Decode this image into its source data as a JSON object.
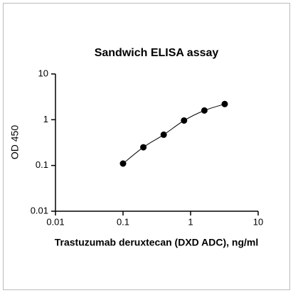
{
  "chart_data": {
    "type": "scatter",
    "title": "Sandwich ELISA assay",
    "x_label": "Trastuzumab deruxtecan (DXD ADC), ng/ml",
    "y_label": "OD 450",
    "x_log": true,
    "y_log": true,
    "xlim": [
      0.01,
      10
    ],
    "ylim": [
      0.01,
      10
    ],
    "xticks": [
      0.01,
      0.1,
      1,
      10
    ],
    "yticks": [
      0.01,
      0.1,
      1,
      10
    ],
    "series": [
      {
        "name": null,
        "color": "#000000",
        "x": [
          0.1,
          0.2,
          0.4,
          0.8,
          1.6,
          3.2
        ],
        "values": [
          0.11,
          0.25,
          0.47,
          0.96,
          1.59,
          2.2
        ]
      }
    ]
  }
}
